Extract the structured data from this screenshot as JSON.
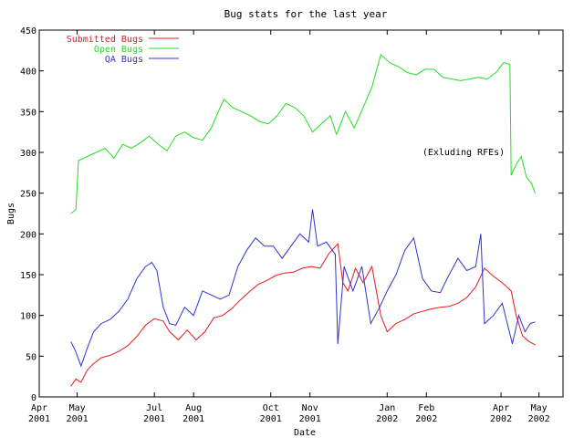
{
  "chart_data": {
    "type": "line",
    "title": "Bug stats for the last year",
    "xlabel": "Date",
    "ylabel": "Bugs",
    "ylim": [
      0,
      450
    ],
    "yticks": [
      0,
      50,
      100,
      150,
      200,
      250,
      300,
      350,
      400,
      450
    ],
    "xlim": [
      "2001-04-01",
      "2002-05-20"
    ],
    "xticks": [
      {
        "date": "2001-04-01",
        "month": "Apr",
        "year": "2001"
      },
      {
        "date": "2001-05-01",
        "month": "May",
        "year": "2001"
      },
      {
        "date": "2001-07-01",
        "month": "Jul",
        "year": "2001"
      },
      {
        "date": "2001-08-01",
        "month": "Aug",
        "year": "2001"
      },
      {
        "date": "2001-10-01",
        "month": "Oct",
        "year": "2001"
      },
      {
        "date": "2001-11-01",
        "month": "Nov",
        "year": "2001"
      },
      {
        "date": "2002-01-01",
        "month": "Jan",
        "year": "2002"
      },
      {
        "date": "2002-02-01",
        "month": "Feb",
        "year": "2002"
      },
      {
        "date": "2002-04-01",
        "month": "Apr",
        "year": "2002"
      },
      {
        "date": "2002-05-01",
        "month": "May",
        "year": "2002"
      }
    ],
    "grid": false,
    "legend_position": "top-left",
    "annotation": "(Exluding RFEs)",
    "series": [
      {
        "name": "Submitted Bugs",
        "color": "#e41a1c",
        "points": [
          [
            "2001-04-26",
            13
          ],
          [
            "2001-04-30",
            22
          ],
          [
            "2001-05-04",
            18
          ],
          [
            "2001-05-09",
            33
          ],
          [
            "2001-05-14",
            41
          ],
          [
            "2001-05-20",
            48
          ],
          [
            "2001-05-27",
            51
          ],
          [
            "2001-06-03",
            56
          ],
          [
            "2001-06-10",
            63
          ],
          [
            "2001-06-17",
            74
          ],
          [
            "2001-06-24",
            88
          ],
          [
            "2001-07-01",
            96
          ],
          [
            "2001-07-08",
            93
          ],
          [
            "2001-07-13",
            80
          ],
          [
            "2001-07-20",
            70
          ],
          [
            "2001-07-27",
            82
          ],
          [
            "2001-08-03",
            70
          ],
          [
            "2001-08-10",
            80
          ],
          [
            "2001-08-17",
            97
          ],
          [
            "2001-08-24",
            100
          ],
          [
            "2001-08-31",
            108
          ],
          [
            "2001-09-07",
            119
          ],
          [
            "2001-09-14",
            129
          ],
          [
            "2001-09-21",
            138
          ],
          [
            "2001-09-28",
            143
          ],
          [
            "2001-10-05",
            149
          ],
          [
            "2001-10-12",
            152
          ],
          [
            "2001-10-19",
            153
          ],
          [
            "2001-10-26",
            158
          ],
          [
            "2001-11-02",
            160
          ],
          [
            "2001-11-09",
            158
          ],
          [
            "2001-11-16",
            176
          ],
          [
            "2001-11-23",
            188
          ],
          [
            "2001-11-27",
            140
          ],
          [
            "2001-12-01",
            130
          ],
          [
            "2001-12-07",
            158
          ],
          [
            "2001-12-13",
            140
          ],
          [
            "2001-12-20",
            160
          ],
          [
            "2001-12-27",
            100
          ],
          [
            "2002-01-01",
            80
          ],
          [
            "2002-01-08",
            90
          ],
          [
            "2002-01-15",
            95
          ],
          [
            "2002-01-22",
            102
          ],
          [
            "2002-01-29",
            105
          ],
          [
            "2002-02-05",
            108
          ],
          [
            "2002-02-12",
            110
          ],
          [
            "2002-02-19",
            111
          ],
          [
            "2002-02-26",
            115
          ],
          [
            "2002-03-05",
            122
          ],
          [
            "2002-03-12",
            135
          ],
          [
            "2002-03-19",
            158
          ],
          [
            "2002-03-26",
            148
          ],
          [
            "2002-04-02",
            140
          ],
          [
            "2002-04-09",
            130
          ],
          [
            "2002-04-13",
            100
          ],
          [
            "2002-04-18",
            75
          ],
          [
            "2002-04-23",
            68
          ],
          [
            "2002-04-28",
            64
          ]
        ]
      },
      {
        "name": "Open Bugs",
        "color": "#22dd22",
        "points": [
          [
            "2001-04-26",
            225
          ],
          [
            "2001-04-30",
            230
          ],
          [
            "2001-05-02",
            290
          ],
          [
            "2001-05-09",
            295
          ],
          [
            "2001-05-16",
            300
          ],
          [
            "2001-05-23",
            305
          ],
          [
            "2001-05-30",
            293
          ],
          [
            "2001-06-06",
            310
          ],
          [
            "2001-06-13",
            305
          ],
          [
            "2001-06-20",
            312
          ],
          [
            "2001-06-27",
            320
          ],
          [
            "2001-07-04",
            310
          ],
          [
            "2001-07-11",
            302
          ],
          [
            "2001-07-18",
            320
          ],
          [
            "2001-07-25",
            325
          ],
          [
            "2001-08-01",
            318
          ],
          [
            "2001-08-08",
            315
          ],
          [
            "2001-08-15",
            330
          ],
          [
            "2001-08-20",
            348
          ],
          [
            "2001-08-25",
            365
          ],
          [
            "2001-09-01",
            355
          ],
          [
            "2001-09-08",
            350
          ],
          [
            "2001-09-15",
            345
          ],
          [
            "2001-09-22",
            338
          ],
          [
            "2001-09-29",
            335
          ],
          [
            "2001-10-06",
            345
          ],
          [
            "2001-10-13",
            360
          ],
          [
            "2001-10-20",
            355
          ],
          [
            "2001-10-27",
            345
          ],
          [
            "2001-11-03",
            325
          ],
          [
            "2001-11-10",
            335
          ],
          [
            "2001-11-17",
            345
          ],
          [
            "2001-11-22",
            322
          ],
          [
            "2001-11-29",
            350
          ],
          [
            "2001-12-06",
            330
          ],
          [
            "2001-12-13",
            355
          ],
          [
            "2001-12-20",
            380
          ],
          [
            "2001-12-27",
            420
          ],
          [
            "2002-01-03",
            410
          ],
          [
            "2002-01-10",
            405
          ],
          [
            "2002-01-17",
            398
          ],
          [
            "2002-01-24",
            395
          ],
          [
            "2002-01-31",
            402
          ],
          [
            "2002-02-07",
            402
          ],
          [
            "2002-02-14",
            392
          ],
          [
            "2002-02-21",
            390
          ],
          [
            "2002-02-28",
            388
          ],
          [
            "2002-03-07",
            390
          ],
          [
            "2002-03-14",
            392
          ],
          [
            "2002-03-21",
            390
          ],
          [
            "2002-03-28",
            398
          ],
          [
            "2002-04-03",
            410
          ],
          [
            "2002-04-08",
            408
          ],
          [
            "2002-04-09",
            272
          ],
          [
            "2002-04-13",
            285
          ],
          [
            "2002-04-17",
            295
          ],
          [
            "2002-04-21",
            270
          ],
          [
            "2002-04-25",
            262
          ],
          [
            "2002-04-28",
            250
          ]
        ]
      },
      {
        "name": "QA Bugs",
        "color": "#3333cc",
        "points": [
          [
            "2001-04-26",
            68
          ],
          [
            "2001-04-30",
            55
          ],
          [
            "2001-05-04",
            38
          ],
          [
            "2001-05-09",
            60
          ],
          [
            "2001-05-14",
            80
          ],
          [
            "2001-05-20",
            90
          ],
          [
            "2001-05-27",
            95
          ],
          [
            "2001-06-03",
            105
          ],
          [
            "2001-06-10",
            120
          ],
          [
            "2001-06-17",
            145
          ],
          [
            "2001-06-24",
            160
          ],
          [
            "2001-06-29",
            165
          ],
          [
            "2001-07-03",
            155
          ],
          [
            "2001-07-08",
            110
          ],
          [
            "2001-07-13",
            90
          ],
          [
            "2001-07-18",
            88
          ],
          [
            "2001-07-25",
            110
          ],
          [
            "2001-08-01",
            100
          ],
          [
            "2001-08-08",
            130
          ],
          [
            "2001-08-15",
            125
          ],
          [
            "2001-08-22",
            120
          ],
          [
            "2001-08-29",
            125
          ],
          [
            "2001-09-05",
            160
          ],
          [
            "2001-09-12",
            180
          ],
          [
            "2001-09-19",
            195
          ],
          [
            "2001-09-26",
            185
          ],
          [
            "2001-10-03",
            185
          ],
          [
            "2001-10-10",
            170
          ],
          [
            "2001-10-17",
            185
          ],
          [
            "2001-10-24",
            200
          ],
          [
            "2001-10-31",
            190
          ],
          [
            "2001-11-03",
            230
          ],
          [
            "2001-11-07",
            185
          ],
          [
            "2001-11-14",
            190
          ],
          [
            "2001-11-21",
            175
          ],
          [
            "2001-11-23",
            65
          ],
          [
            "2001-11-28",
            160
          ],
          [
            "2001-12-05",
            130
          ],
          [
            "2001-12-12",
            160
          ],
          [
            "2001-12-19",
            90
          ],
          [
            "2001-12-26",
            110
          ],
          [
            "2002-01-01",
            130
          ],
          [
            "2002-01-08",
            150
          ],
          [
            "2002-01-15",
            180
          ],
          [
            "2002-01-22",
            195
          ],
          [
            "2002-01-29",
            145
          ],
          [
            "2002-02-05",
            130
          ],
          [
            "2002-02-12",
            128
          ],
          [
            "2002-02-19",
            150
          ],
          [
            "2002-02-26",
            170
          ],
          [
            "2002-03-05",
            155
          ],
          [
            "2002-03-12",
            160
          ],
          [
            "2002-03-16",
            200
          ],
          [
            "2002-03-19",
            90
          ],
          [
            "2002-03-26",
            100
          ],
          [
            "2002-04-02",
            115
          ],
          [
            "2002-04-06",
            90
          ],
          [
            "2002-04-10",
            65
          ],
          [
            "2002-04-15",
            100
          ],
          [
            "2002-04-20",
            80
          ],
          [
            "2002-04-24",
            90
          ],
          [
            "2002-04-28",
            92
          ]
        ]
      }
    ]
  }
}
